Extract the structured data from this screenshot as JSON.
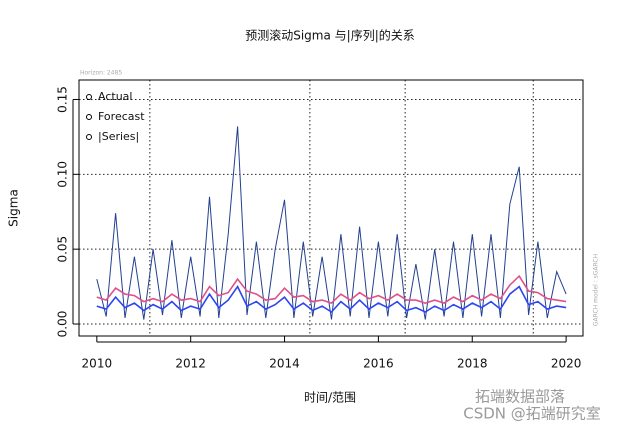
{
  "chart_data": {
    "type": "line",
    "title": "预测滚动Sigma 与|序列|的关系",
    "subtitle": "Horizon: 2485",
    "side_note": "GARCH model : sGARCH",
    "xlabel": "时间/范围",
    "ylabel": "Sigma",
    "watermarks": [
      "拓端数据部落",
      "CSDN @拓端研究室"
    ],
    "legend": "top-left",
    "grid": true,
    "xlim": [
      2009.62,
      2020.36
    ],
    "ylim": [
      -0.008,
      0.163
    ],
    "xticks": [
      2010,
      2012,
      2014,
      2016,
      2018,
      2020
    ],
    "xgrid": [
      2011.13,
      2014.54,
      2016.57,
      2019.3
    ],
    "yticks": [
      {
        "value": 0,
        "label": "0.00"
      },
      {
        "value": 0.05,
        "label": "0.05"
      },
      {
        "value": 0.1,
        "label": "0.10"
      },
      {
        "value": 0.15,
        "label": "0.15"
      }
    ],
    "x": [
      2010.0,
      2010.2,
      2010.4,
      2010.6,
      2010.8,
      2011.0,
      2011.2,
      2011.4,
      2011.6,
      2011.8,
      2012.0,
      2012.2,
      2012.4,
      2012.6,
      2012.8,
      2013.0,
      2013.2,
      2013.4,
      2013.6,
      2013.8,
      2014.0,
      2014.2,
      2014.4,
      2014.6,
      2014.8,
      2015.0,
      2015.2,
      2015.4,
      2015.6,
      2015.8,
      2016.0,
      2016.2,
      2016.4,
      2016.6,
      2016.8,
      2017.0,
      2017.2,
      2017.4,
      2017.6,
      2017.8,
      2018.0,
      2018.2,
      2018.4,
      2018.6,
      2018.8,
      2019.0,
      2019.2,
      2019.4,
      2019.6,
      2019.8,
      2020.0
    ],
    "series": [
      {
        "name": "|Series|",
        "color": "#23408f",
        "values": [
          0.03,
          0.005,
          0.074,
          0.004,
          0.045,
          0.003,
          0.05,
          0.006,
          0.056,
          0.004,
          0.045,
          0.005,
          0.085,
          0.004,
          0.06,
          0.132,
          0.006,
          0.055,
          0.004,
          0.05,
          0.083,
          0.004,
          0.055,
          0.005,
          0.045,
          0.003,
          0.06,
          0.005,
          0.065,
          0.004,
          0.055,
          0.005,
          0.06,
          0.004,
          0.04,
          0.003,
          0.05,
          0.005,
          0.055,
          0.004,
          0.06,
          0.005,
          0.06,
          0.004,
          0.08,
          0.105,
          0.006,
          0.055,
          0.004,
          0.035,
          0.02
        ]
      },
      {
        "name": "Actual",
        "color": "#2b46f2",
        "values": [
          0.012,
          0.01,
          0.018,
          0.011,
          0.014,
          0.009,
          0.013,
          0.01,
          0.015,
          0.009,
          0.012,
          0.01,
          0.02,
          0.011,
          0.016,
          0.025,
          0.012,
          0.015,
          0.01,
          0.013,
          0.018,
          0.01,
          0.014,
          0.009,
          0.012,
          0.008,
          0.015,
          0.01,
          0.016,
          0.01,
          0.014,
          0.011,
          0.015,
          0.009,
          0.011,
          0.008,
          0.012,
          0.009,
          0.013,
          0.01,
          0.014,
          0.011,
          0.015,
          0.01,
          0.02,
          0.025,
          0.013,
          0.015,
          0.01,
          0.012,
          0.011
        ]
      },
      {
        "name": "Forecast",
        "color": "#e0508a",
        "values": [
          0.018,
          0.016,
          0.024,
          0.02,
          0.019,
          0.015,
          0.017,
          0.015,
          0.02,
          0.016,
          0.017,
          0.015,
          0.025,
          0.019,
          0.021,
          0.03,
          0.022,
          0.02,
          0.016,
          0.017,
          0.024,
          0.018,
          0.019,
          0.015,
          0.016,
          0.014,
          0.02,
          0.016,
          0.021,
          0.017,
          0.019,
          0.016,
          0.02,
          0.016,
          0.016,
          0.014,
          0.016,
          0.014,
          0.018,
          0.015,
          0.019,
          0.016,
          0.02,
          0.017,
          0.026,
          0.032,
          0.022,
          0.021,
          0.017,
          0.016,
          0.015
        ]
      }
    ]
  }
}
